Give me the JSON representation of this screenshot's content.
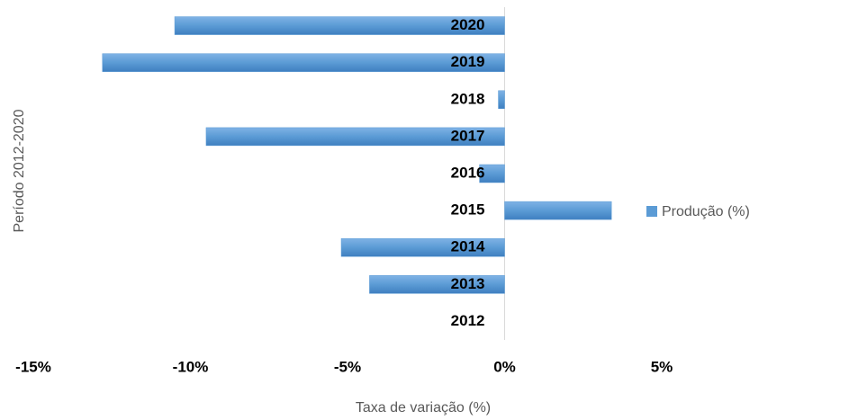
{
  "chart_data": {
    "type": "bar",
    "orientation": "horizontal",
    "y_label": "Período 2012-2020",
    "x_label": "Taxa de variação (%)",
    "categories": [
      "2012",
      "2013",
      "2014",
      "2015",
      "2016",
      "2017",
      "2018",
      "2019",
      "2020"
    ],
    "series": [
      {
        "name": "Produção (%)",
        "color": "#5b9bd5",
        "values": [
          0,
          -4.3,
          -5.2,
          3.4,
          -0.8,
          -9.5,
          -0.2,
          -12.8,
          -10.5
        ]
      }
    ],
    "xlim": [
      -15,
      5
    ],
    "xticks": [
      {
        "value": -15,
        "label": "-15%"
      },
      {
        "value": -10,
        "label": "-10%"
      },
      {
        "value": -5,
        "label": "-5%"
      },
      {
        "value": 0,
        "label": "0%"
      },
      {
        "value": 5,
        "label": "5%"
      }
    ],
    "legend": "right"
  }
}
